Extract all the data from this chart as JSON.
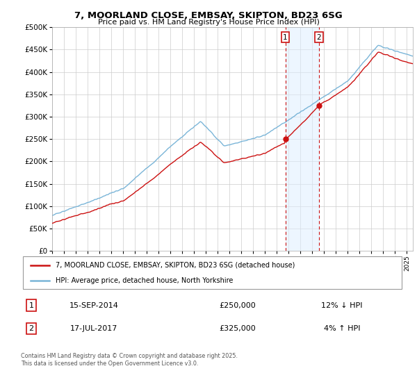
{
  "title_line1": "7, MOORLAND CLOSE, EMBSAY, SKIPTON, BD23 6SG",
  "title_line2": "Price paid vs. HM Land Registry's House Price Index (HPI)",
  "ylim": [
    0,
    500000
  ],
  "yticks": [
    0,
    50000,
    100000,
    150000,
    200000,
    250000,
    300000,
    350000,
    400000,
    450000,
    500000
  ],
  "ytick_labels": [
    "£0",
    "£50K",
    "£100K",
    "£150K",
    "£200K",
    "£250K",
    "£300K",
    "£350K",
    "£400K",
    "£450K",
    "£500K"
  ],
  "hpi_color": "#7ab5d8",
  "price_color": "#cc1111",
  "vline_color": "#cc1111",
  "shade_color": "#ddeeff",
  "shade_alpha": 0.5,
  "legend_label_red": "7, MOORLAND CLOSE, EMBSAY, SKIPTON, BD23 6SG (detached house)",
  "legend_label_blue": "HPI: Average price, detached house, North Yorkshire",
  "table_row1": [
    "1",
    "15-SEP-2014",
    "£250,000",
    "12% ↓ HPI"
  ],
  "table_row2": [
    "2",
    "17-JUL-2017",
    "£325,000",
    "4% ↑ HPI"
  ],
  "footer": "Contains HM Land Registry data © Crown copyright and database right 2025.\nThis data is licensed under the Open Government Licence v3.0.",
  "background_color": "#ffffff",
  "grid_color": "#cccccc",
  "sale1_year": 2014.71,
  "sale2_year": 2017.54,
  "sale1_price": 250000,
  "sale2_price": 325000,
  "xmin": 1995,
  "xmax": 2025.5
}
